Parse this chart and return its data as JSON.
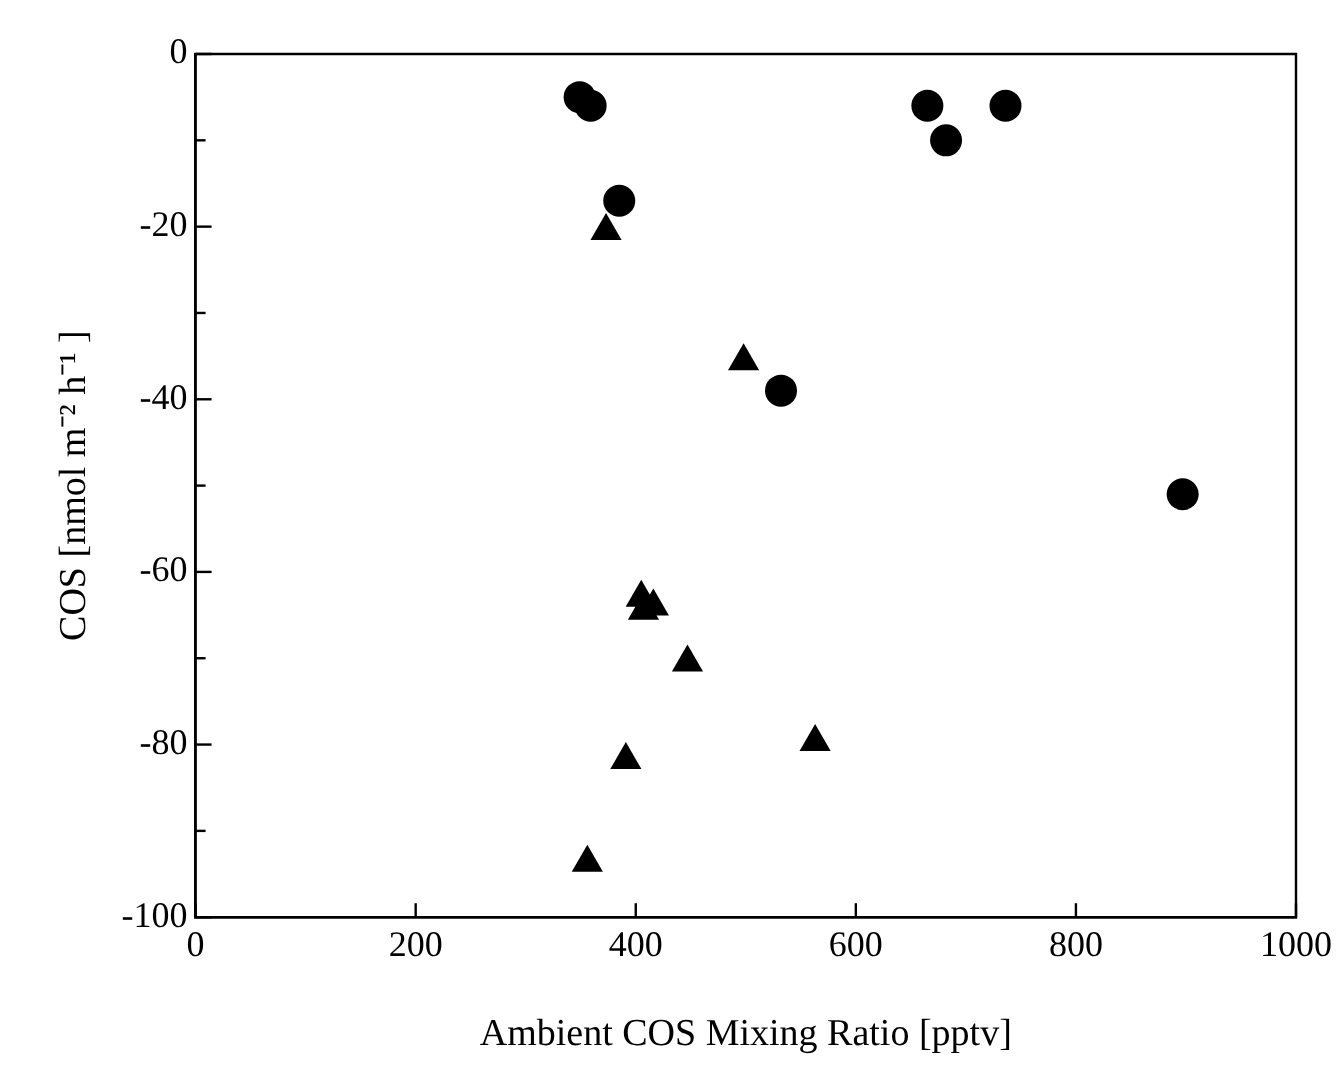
{
  "chart_data": {
    "type": "scatter",
    "xlabel": "Ambient COS Mixing Ratio [pptv]",
    "ylabel": "COS [nmol m⁻² h⁻¹ ]",
    "xlim": [
      0,
      1000
    ],
    "xticks": [
      0,
      200,
      400,
      600,
      800,
      1000
    ],
    "ylim": [
      -100,
      0
    ],
    "yticks": [
      -100,
      {
        "value": -90,
        "label": null
      },
      -80,
      {
        "value": -70,
        "label": null
      },
      -60,
      {
        "value": -50,
        "label": null
      },
      -40,
      {
        "value": -30,
        "label": null
      },
      -20,
      {
        "value": -10,
        "label": null
      },
      0
    ],
    "grid": false,
    "legend": false,
    "series": [
      {
        "color": "#000000",
        "marker": "circle",
        "x": [
          349,
          359,
          665,
          682,
          736,
          385,
          532,
          897
        ],
        "values": [
          -5,
          -6,
          -6,
          -10,
          -6,
          -17,
          -39,
          -51
        ]
      },
      {
        "color": "#000000",
        "marker": "triangle",
        "x": [
          373,
          498,
          405,
          416,
          407,
          447,
          563,
          391,
          356
        ],
        "values": [
          -20.5,
          -35.6,
          -63,
          -64,
          -64.5,
          -70.5,
          -79.7,
          -81.8,
          -93.7
        ]
      }
    ]
  }
}
